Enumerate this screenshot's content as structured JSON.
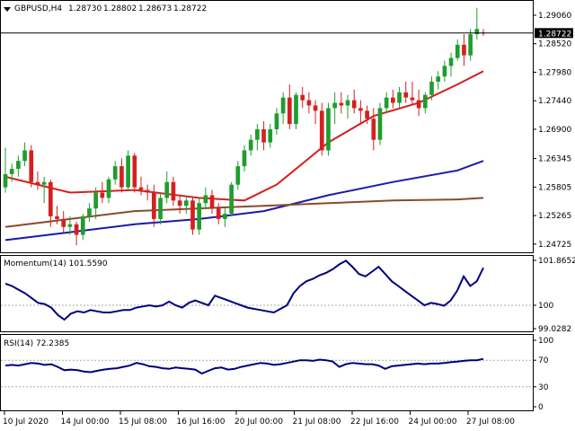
{
  "chart_data": [
    {
      "type": "candlestick",
      "header": {
        "symbol": "GBPUSD,H4",
        "open": "1.28730",
        "high": "1.28802",
        "low": "1.28673",
        "close": "1.28722"
      },
      "ylim": [
        1.2462,
        1.2928
      ],
      "y_ticks": [
        "1.29060",
        "1.28520",
        "1.27980",
        "1.27440",
        "1.26900",
        "1.26345",
        "1.25805",
        "1.25265",
        "1.24725"
      ],
      "price_marker": "1.28722",
      "ohlc": [
        [
          1.258,
          1.2655,
          1.257,
          1.2605
        ],
        [
          1.2605,
          1.2625,
          1.259,
          1.2615
        ],
        [
          1.2615,
          1.264,
          1.26,
          1.263
        ],
        [
          1.263,
          1.2665,
          1.262,
          1.265
        ],
        [
          1.265,
          1.266,
          1.258,
          1.259
        ],
        [
          1.259,
          1.261,
          1.2575,
          1.2585
        ],
        [
          1.2585,
          1.26,
          1.255,
          1.259
        ],
        [
          1.259,
          1.2595,
          1.2505,
          1.2525
        ],
        [
          1.2525,
          1.2545,
          1.251,
          1.252
        ],
        [
          1.252,
          1.2535,
          1.2495,
          1.2505
        ],
        [
          1.2505,
          1.2525,
          1.249,
          1.251
        ],
        [
          1.251,
          1.2515,
          1.247,
          1.249
        ],
        [
          1.249,
          1.253,
          1.248,
          1.2525
        ],
        [
          1.2525,
          1.255,
          1.2515,
          1.254
        ],
        [
          1.254,
          1.258,
          1.252,
          1.257
        ],
        [
          1.257,
          1.259,
          1.255,
          1.256
        ],
        [
          1.256,
          1.26,
          1.255,
          1.2595
        ],
        [
          1.2595,
          1.263,
          1.2585,
          1.262
        ],
        [
          1.262,
          1.2635,
          1.257,
          1.258
        ],
        [
          1.258,
          1.265,
          1.2575,
          1.264
        ],
        [
          1.264,
          1.2645,
          1.257,
          1.258
        ],
        [
          1.258,
          1.26,
          1.2565,
          1.2575
        ],
        [
          1.2575,
          1.2585,
          1.2555,
          1.257
        ],
        [
          1.257,
          1.2585,
          1.2505,
          1.252
        ],
        [
          1.252,
          1.257,
          1.251,
          1.256
        ],
        [
          1.256,
          1.261,
          1.255,
          1.259
        ],
        [
          1.259,
          1.26,
          1.2545,
          1.2555
        ],
        [
          1.2555,
          1.2565,
          1.253,
          1.2545
        ],
        [
          1.2545,
          1.2565,
          1.253,
          1.2555
        ],
        [
          1.2555,
          1.256,
          1.249,
          1.25
        ],
        [
          1.25,
          1.256,
          1.249,
          1.255
        ],
        [
          1.255,
          1.258,
          1.254,
          1.2565
        ],
        [
          1.2565,
          1.2575,
          1.253,
          1.254
        ],
        [
          1.254,
          1.255,
          1.251,
          1.252
        ],
        [
          1.252,
          1.254,
          1.2505,
          1.253
        ],
        [
          1.253,
          1.259,
          1.2525,
          1.2585
        ],
        [
          1.2585,
          1.263,
          1.2575,
          1.262
        ],
        [
          1.262,
          1.266,
          1.261,
          1.265
        ],
        [
          1.265,
          1.268,
          1.264,
          1.267
        ],
        [
          1.267,
          1.27,
          1.265,
          1.269
        ],
        [
          1.269,
          1.2705,
          1.265,
          1.2665
        ],
        [
          1.2665,
          1.27,
          1.2655,
          1.269
        ],
        [
          1.269,
          1.273,
          1.268,
          1.272
        ],
        [
          1.272,
          1.276,
          1.27,
          1.275
        ],
        [
          1.275,
          1.2775,
          1.269,
          1.27
        ],
        [
          1.27,
          1.276,
          1.269,
          1.2755
        ],
        [
          1.2755,
          1.277,
          1.273,
          1.2745
        ],
        [
          1.2745,
          1.276,
          1.272,
          1.2735
        ],
        [
          1.2735,
          1.2745,
          1.27,
          1.2725
        ],
        [
          1.2725,
          1.274,
          1.264,
          1.265
        ],
        [
          1.265,
          1.274,
          1.264,
          1.273
        ],
        [
          1.273,
          1.276,
          1.27,
          1.274
        ],
        [
          1.274,
          1.276,
          1.272,
          1.2735
        ],
        [
          1.2735,
          1.2755,
          1.271,
          1.2745
        ],
        [
          1.2745,
          1.2765,
          1.272,
          1.273
        ],
        [
          1.273,
          1.2745,
          1.27,
          1.2725
        ],
        [
          1.2725,
          1.2735,
          1.27,
          1.271
        ],
        [
          1.271,
          1.273,
          1.265,
          1.267
        ],
        [
          1.267,
          1.274,
          1.266,
          1.273
        ],
        [
          1.273,
          1.276,
          1.272,
          1.275
        ],
        [
          1.275,
          1.2765,
          1.273,
          1.274
        ],
        [
          1.274,
          1.277,
          1.273,
          1.276
        ],
        [
          1.276,
          1.278,
          1.274,
          1.275
        ],
        [
          1.275,
          1.278,
          1.2735,
          1.2745
        ],
        [
          1.2745,
          1.2765,
          1.2715,
          1.273
        ],
        [
          1.273,
          1.276,
          1.272,
          1.2755
        ],
        [
          1.2755,
          1.279,
          1.2745,
          1.278
        ],
        [
          1.278,
          1.28,
          1.2765,
          1.279
        ],
        [
          1.279,
          1.282,
          1.278,
          1.281
        ],
        [
          1.281,
          1.2835,
          1.279,
          1.2825
        ],
        [
          1.2825,
          1.286,
          1.282,
          1.285
        ],
        [
          1.285,
          1.287,
          1.281,
          1.283
        ],
        [
          1.283,
          1.288,
          1.282,
          1.287
        ],
        [
          1.287,
          1.292,
          1.286,
          1.288
        ],
        [
          1.2873,
          1.288,
          1.2867,
          1.2872
        ]
      ],
      "overlays": [
        {
          "color": "#d42020",
          "points": [
            [
              0,
              1.26
            ],
            [
              10,
              1.257
            ],
            [
              20,
              1.2575
            ],
            [
              30,
              1.256
            ],
            [
              37,
              1.2555
            ],
            [
              42,
              1.2585
            ],
            [
              50,
              1.2665
            ],
            [
              57,
              1.2715
            ],
            [
              64,
              1.274
            ],
            [
              70,
              1.2775
            ],
            [
              74,
              1.28
            ]
          ]
        },
        {
          "color": "#1a1aaa",
          "points": [
            [
              0,
              1.248
            ],
            [
              10,
              1.2495
            ],
            [
              20,
              1.251
            ],
            [
              30,
              1.252
            ],
            [
              40,
              1.2535
            ],
            [
              50,
              1.2565
            ],
            [
              60,
              1.259
            ],
            [
              70,
              1.2612
            ],
            [
              74,
              1.263
            ]
          ]
        },
        {
          "color": "#8b4a2b",
          "points": [
            [
              0,
              1.2505
            ],
            [
              10,
              1.252
            ],
            [
              20,
              1.2535
            ],
            [
              30,
              1.254
            ],
            [
              40,
              1.2545
            ],
            [
              50,
              1.255
            ],
            [
              60,
              1.2555
            ],
            [
              70,
              1.2557
            ],
            [
              74,
              1.256
            ]
          ]
        }
      ]
    },
    {
      "type": "line",
      "indicator": "Momentum(14)",
      "current_value": "101.5590",
      "ylim": [
        99.0282,
        101.8652
      ],
      "y_ticks": [
        "101.8652",
        "100",
        "99.0282"
      ],
      "reference_line": 100,
      "values": [
        100.9,
        100.8,
        100.65,
        100.5,
        100.3,
        100.1,
        100.05,
        99.9,
        99.6,
        99.4,
        99.65,
        99.75,
        99.7,
        99.8,
        99.75,
        99.7,
        99.7,
        99.75,
        99.8,
        99.8,
        99.9,
        99.95,
        100.0,
        99.95,
        100.0,
        100.15,
        100.0,
        99.9,
        100.1,
        100.2,
        100.1,
        100.0,
        100.4,
        100.3,
        100.2,
        100.1,
        100.0,
        99.9,
        99.85,
        99.8,
        99.75,
        99.7,
        99.85,
        100.0,
        100.5,
        100.8,
        101.0,
        101.1,
        101.25,
        101.35,
        101.5,
        101.7,
        101.85,
        101.6,
        101.3,
        101.2,
        101.4,
        101.6,
        101.3,
        101.0,
        100.8,
        100.6,
        100.4,
        100.2,
        100.0,
        100.1,
        100.05,
        99.98,
        100.2,
        100.6,
        101.2,
        100.8,
        101.0,
        101.56
      ]
    },
    {
      "type": "line",
      "indicator": "RSI(14)",
      "current_value": "72.2385",
      "ylim": [
        0,
        100
      ],
      "y_ticks": [
        "100",
        "70",
        "30",
        "0"
      ],
      "reference_lines": [
        70,
        30
      ],
      "values": [
        62,
        63,
        62,
        64,
        66,
        65,
        63,
        64,
        60,
        55,
        56,
        55,
        53,
        52,
        54,
        56,
        57,
        58,
        60,
        62,
        66,
        64,
        61,
        60,
        58,
        57,
        59,
        58,
        57,
        56,
        50,
        54,
        58,
        59,
        56,
        57,
        60,
        62,
        64,
        66,
        65,
        63,
        64,
        66,
        68,
        70,
        70,
        69,
        71,
        70,
        68,
        60,
        64,
        66,
        65,
        64,
        64,
        62,
        57,
        61,
        62,
        63,
        64,
        65,
        64,
        65,
        65,
        66,
        67,
        68,
        69,
        70,
        70,
        72
      ]
    }
  ],
  "time_axis": [
    "10 Jul 2020",
    "14 Jul 00:00",
    "15 Jul 08:00",
    "16 Jul 16:00",
    "20 Jul 00:00",
    "21 Jul 08:00",
    "22 Jul 16:00",
    "24 Jul 00:00",
    "27 Jul 08:00"
  ],
  "colors": {
    "bull": "#1f9d2e",
    "bear": "#d42020",
    "indicator": "#000080",
    "frame": "#000000",
    "reference": "#aaaaaa",
    "price_marker": "#000000",
    "price_marker_text": "#ffffff"
  }
}
